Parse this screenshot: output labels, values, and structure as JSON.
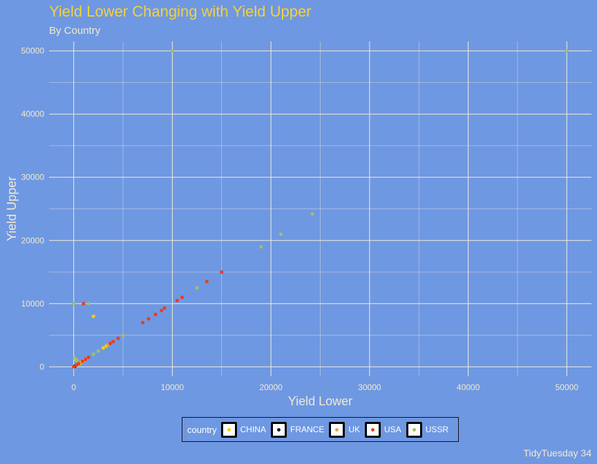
{
  "chart_data": {
    "type": "scatter",
    "title": "Yield Lower Changing with Yield Upper",
    "subtitle": "By Country",
    "xlabel": "Yield Lower",
    "ylabel": "Yield Upper",
    "caption": "TidyTuesday 34",
    "xlim": [
      -2500,
      52500
    ],
    "ylim": [
      -1500,
      51500
    ],
    "xticks": [
      0,
      10000,
      20000,
      30000,
      40000,
      50000
    ],
    "yticks": [
      0,
      10000,
      20000,
      30000,
      40000,
      50000
    ],
    "xtick_labels": [
      "0",
      "10000",
      "20000",
      "30000",
      "40000",
      "50000"
    ],
    "ytick_labels": [
      "0",
      "10000",
      "20000",
      "30000",
      "40000",
      "50000"
    ],
    "grid": true,
    "legend": {
      "title": "country",
      "position": "bottom"
    },
    "series": [
      {
        "name": "CHINA",
        "color": "#f5d000",
        "points": [
          [
            0,
            0
          ],
          [
            200,
            200
          ],
          [
            400,
            400
          ],
          [
            600,
            600
          ],
          [
            800,
            800
          ],
          [
            1000,
            1000
          ],
          [
            2000,
            8000
          ],
          [
            3000,
            3000
          ],
          [
            3300,
            3300
          ],
          [
            200,
            1200
          ],
          [
            600,
            500
          ]
        ]
      },
      {
        "name": "FRANCE",
        "color": "#1a1a1a",
        "points": [
          [
            100,
            100
          ]
        ]
      },
      {
        "name": "UK",
        "color": "#d4a55a",
        "points": [
          [
            700,
            700
          ],
          [
            1300,
            1300
          ],
          [
            3500,
            3500
          ]
        ]
      },
      {
        "name": "USA",
        "color": "#e8401c",
        "points": [
          [
            0,
            10
          ],
          [
            300,
            300
          ],
          [
            500,
            500
          ],
          [
            900,
            900
          ],
          [
            1200,
            1200
          ],
          [
            1500,
            1500
          ],
          [
            1000,
            10000
          ],
          [
            3700,
            3700
          ],
          [
            4000,
            4000
          ],
          [
            4500,
            4500
          ],
          [
            7000,
            7000
          ],
          [
            7600,
            7600
          ],
          [
            8300,
            8300
          ],
          [
            8900,
            8900
          ],
          [
            9200,
            9300
          ],
          [
            10500,
            10500
          ],
          [
            11000,
            11000
          ],
          [
            13500,
            13500
          ],
          [
            15000,
            15000
          ]
        ]
      },
      {
        "name": "USSR",
        "color": "#9fbf6a",
        "points": [
          [
            0,
            10000
          ],
          [
            10000,
            50000
          ],
          [
            50000,
            50000
          ],
          [
            1500,
            10000
          ],
          [
            100,
            1400
          ],
          [
            2000,
            2000
          ],
          [
            2500,
            2500
          ],
          [
            5000,
            5000
          ],
          [
            12500,
            12500
          ],
          [
            19000,
            19000
          ],
          [
            21000,
            21000
          ],
          [
            24200,
            24200
          ],
          [
            300,
            1000
          ]
        ]
      }
    ]
  },
  "colors": {
    "background": "#6f98e2",
    "grid": "#f0ecd8",
    "title": "#f2d13a",
    "text": "#f1ead0"
  }
}
